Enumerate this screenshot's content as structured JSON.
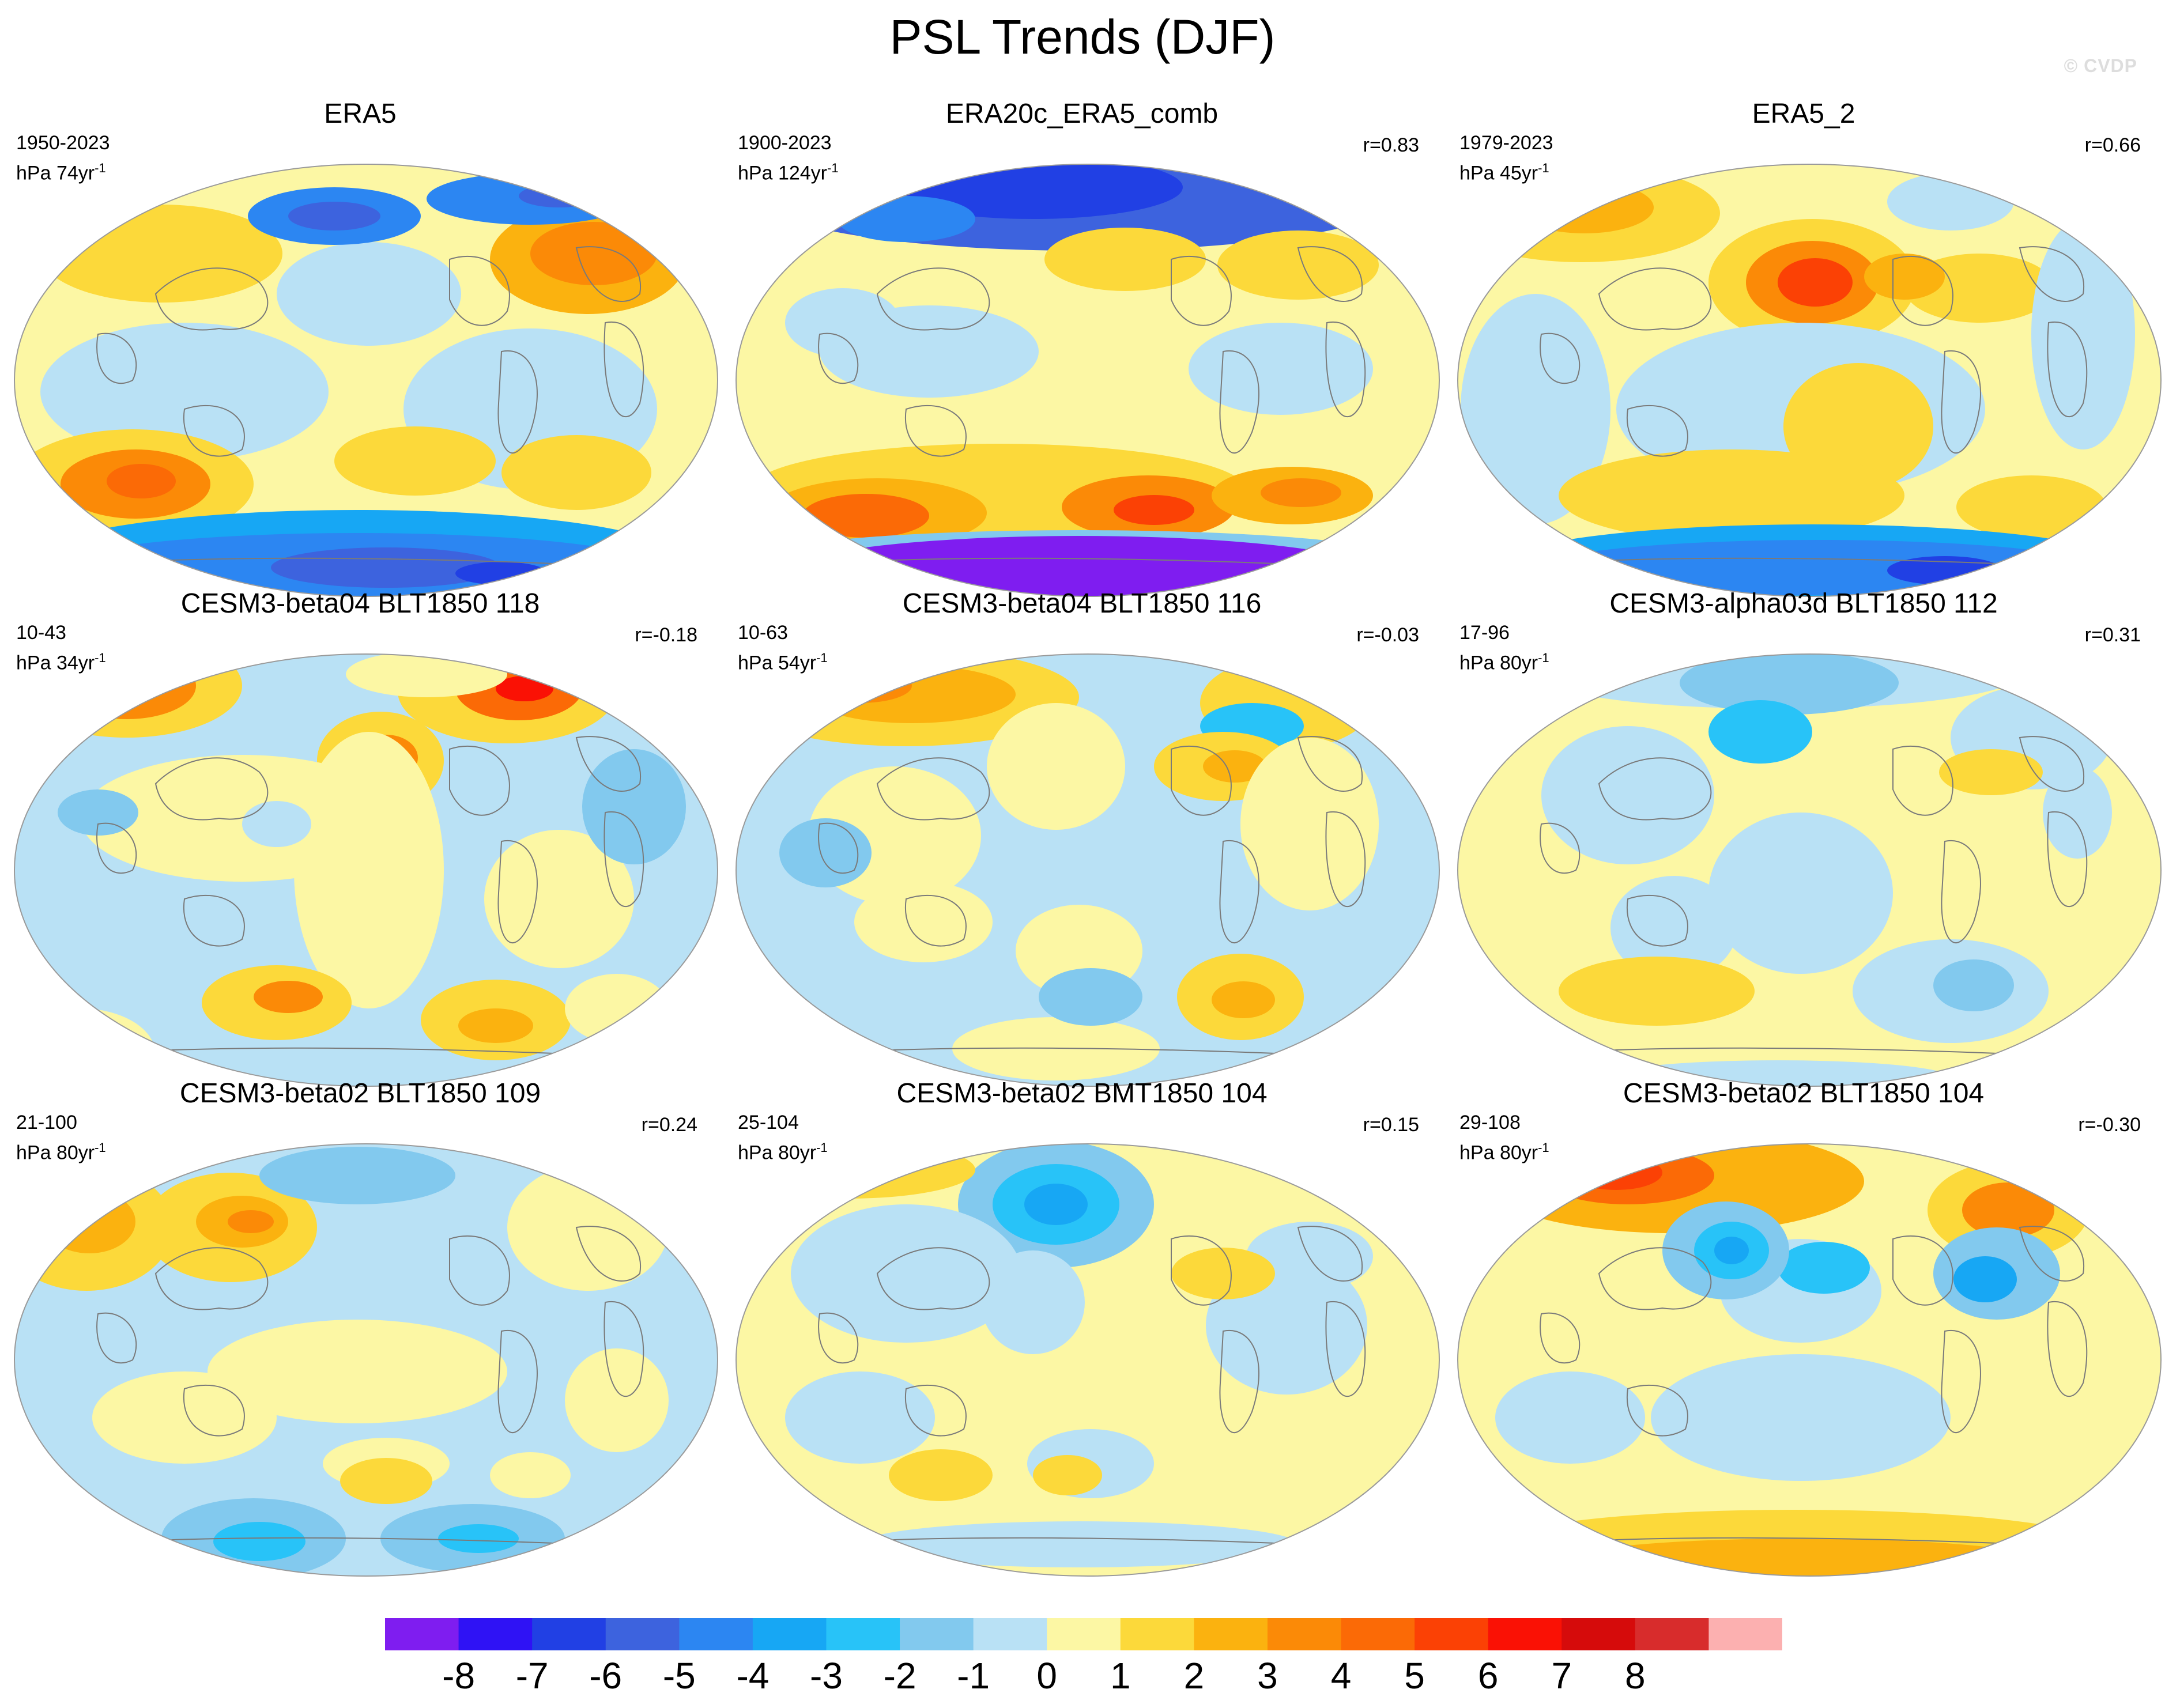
{
  "title": "PSL Trends (DJF)",
  "watermark": "© CVDP",
  "units_prefix": "hPa",
  "colorbar": {
    "labels": [
      "-8",
      "-7",
      "-6",
      "-5",
      "-4",
      "-3",
      "-2",
      "-1",
      "0",
      "1",
      "2",
      "3",
      "4",
      "5",
      "6",
      "7",
      "8"
    ],
    "colors": [
      "#7f1df0",
      "#2f12f5",
      "#2140e4",
      "#3d63de",
      "#2c86f2",
      "#17a7f4",
      "#28c3f8",
      "#82c9ee",
      "#b9e1f5",
      "#fcf7a4",
      "#fcd93a",
      "#fbb20f",
      "#fb8a07",
      "#fb6a06",
      "#fb4105",
      "#fa1105",
      "#d60b0b",
      "#d82c2c",
      "#fcb0b0"
    ]
  },
  "panels": [
    {
      "title": "ERA5",
      "years": "1950-2023",
      "trend": "74yr",
      "corr": "",
      "theme": "era5"
    },
    {
      "title": "ERA20c_ERA5_comb",
      "years": "1900-2023",
      "trend": "124yr",
      "corr": "r=0.83",
      "theme": "era20c"
    },
    {
      "title": "ERA5_2",
      "years": "1979-2023",
      "trend": "45yr",
      "corr": "r=0.66",
      "theme": "era5_2"
    },
    {
      "title": "CESM3-beta04 BLT1850 118",
      "years": "10-43",
      "trend": "34yr",
      "corr": "r=-0.18",
      "theme": "m1"
    },
    {
      "title": "CESM3-beta04 BLT1850 116",
      "years": "10-63",
      "trend": "54yr",
      "corr": "r=-0.03",
      "theme": "m2"
    },
    {
      "title": "CESM3-alpha03d BLT1850 112",
      "years": "17-96",
      "trend": "80yr",
      "corr": "r=0.31",
      "theme": "m3"
    },
    {
      "title": "CESM3-beta02 BLT1850 109",
      "years": "21-100",
      "trend": "80yr",
      "corr": "r=0.24",
      "theme": "m4"
    },
    {
      "title": "CESM3-beta02 BMT1850 104",
      "years": "25-104",
      "trend": "80yr",
      "corr": "r=0.15",
      "theme": "m5"
    },
    {
      "title": "CESM3-beta02 BLT1850 104",
      "years": "29-108",
      "trend": "80yr",
      "corr": "r=-0.30",
      "theme": "m6"
    }
  ]
}
